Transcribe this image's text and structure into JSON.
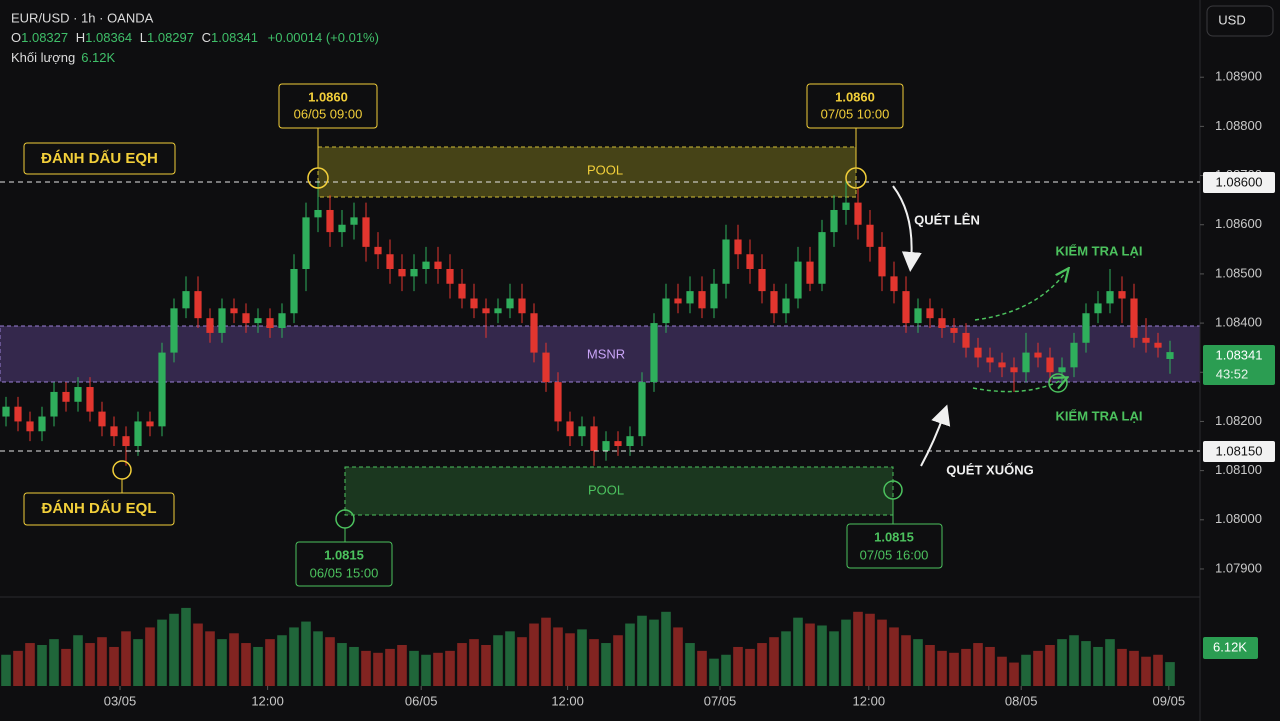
{
  "chart_data": {
    "type": "candlestick",
    "title": "EUR/USD · 1h · OANDA",
    "currency": "USD",
    "ohlc_labels": [
      "O",
      "H",
      "L",
      "C"
    ],
    "change_label": "+0.00014 (+0.01%)",
    "volume_title": "Khối lượng",
    "volume_value_label": "6.12K",
    "countdown": "43:52",
    "up_color": "#2fae5c",
    "down_color": "#e2362f",
    "open": [
      1.0821,
      1.0823,
      1.082,
      1.0818,
      1.0821,
      1.0826,
      1.0824,
      1.0827,
      1.0822,
      1.0819,
      1.0817,
      1.0815,
      1.082,
      1.0819,
      1.0834,
      1.0843,
      1.08465,
      1.0841,
      1.0838,
      1.0843,
      1.0842,
      1.084,
      1.0841,
      1.0839,
      1.0842,
      1.0851,
      1.08615,
      1.0863,
      1.08585,
      1.086,
      1.08615,
      1.08555,
      1.0854,
      1.0851,
      1.08495,
      1.0851,
      1.08525,
      1.0851,
      1.0848,
      1.0845,
      1.0843,
      1.0842,
      1.0843,
      1.0845,
      1.0842,
      1.0834,
      1.0828,
      1.082,
      1.0817,
      1.0819,
      1.0814,
      1.0816,
      1.0815,
      1.0817,
      1.0828,
      1.084,
      1.0845,
      1.0844,
      1.08465,
      1.0843,
      1.0848,
      1.0857,
      1.0854,
      1.0851,
      1.08465,
      1.0842,
      1.0845,
      1.08525,
      1.0848,
      1.08585,
      1.0863,
      1.08645,
      1.086,
      1.08555,
      1.08495,
      1.08465,
      1.084,
      1.0843,
      1.0841,
      1.0839,
      1.0838,
      1.0835,
      1.0833,
      1.0832,
      1.0831,
      1.083,
      1.0834,
      1.0833,
      1.083,
      1.0831,
      1.0836,
      1.0842,
      1.0844,
      1.08465,
      1.0845,
      1.0837,
      1.0836,
      1.08327
    ],
    "high": [
      1.0825,
      1.0825,
      1.0822,
      1.0823,
      1.0828,
      1.0828,
      1.0829,
      1.0829,
      1.0824,
      1.0821,
      1.0819,
      1.0822,
      1.0822,
      1.0836,
      1.0845,
      1.08495,
      1.08495,
      1.0843,
      1.0845,
      1.0845,
      1.0844,
      1.0843,
      1.0843,
      1.0844,
      1.0854,
      1.08645,
      1.0869,
      1.0866,
      1.0863,
      1.08645,
      1.08645,
      1.08585,
      1.0857,
      1.0854,
      1.0854,
      1.08555,
      1.08555,
      1.0854,
      1.0851,
      1.0848,
      1.0845,
      1.0845,
      1.0848,
      1.0848,
      1.0844,
      1.0836,
      1.083,
      1.0822,
      1.0821,
      1.0821,
      1.0818,
      1.0818,
      1.0819,
      1.083,
      1.0842,
      1.0848,
      1.0848,
      1.08495,
      1.08495,
      1.0851,
      1.086,
      1.086,
      1.0857,
      1.0854,
      1.0848,
      1.0848,
      1.08555,
      1.08555,
      1.0861,
      1.0866,
      1.0869,
      1.08675,
      1.0863,
      1.08585,
      1.08525,
      1.08495,
      1.0845,
      1.0845,
      1.0843,
      1.0841,
      1.084,
      1.0837,
      1.0835,
      1.0834,
      1.0833,
      1.0838,
      1.0836,
      1.0835,
      1.0833,
      1.0838,
      1.0844,
      1.08465,
      1.0851,
      1.08495,
      1.0848,
      1.0841,
      1.0838,
      1.08364
    ],
    "low": [
      1.0819,
      1.0818,
      1.0816,
      1.0816,
      1.0819,
      1.0822,
      1.0822,
      1.082,
      1.0817,
      1.0815,
      1.0811,
      1.0813,
      1.0817,
      1.0817,
      1.0832,
      1.0841,
      1.0839,
      1.0836,
      1.0836,
      1.084,
      1.0838,
      1.0838,
      1.0837,
      1.0837,
      1.084,
      1.08465,
      1.08585,
      1.08555,
      1.08555,
      1.0857,
      1.08525,
      1.0851,
      1.0848,
      1.08465,
      1.08465,
      1.0848,
      1.0848,
      1.0845,
      1.0843,
      1.0841,
      1.0837,
      1.084,
      1.0841,
      1.084,
      1.0832,
      1.0826,
      1.0818,
      1.0815,
      1.0815,
      1.0811,
      1.0812,
      1.0813,
      1.0813,
      1.0815,
      1.0826,
      1.0838,
      1.0842,
      1.0842,
      1.0841,
      1.0841,
      1.0845,
      1.0851,
      1.0848,
      1.0844,
      1.084,
      1.084,
      1.0843,
      1.08465,
      1.08465,
      1.08555,
      1.086,
      1.0857,
      1.08525,
      1.08465,
      1.0844,
      1.0838,
      1.0838,
      1.0839,
      1.0837,
      1.0836,
      1.0833,
      1.0831,
      1.083,
      1.0829,
      1.0826,
      1.0828,
      1.0831,
      1.0828,
      1.0828,
      1.0829,
      1.0834,
      1.084,
      1.0842,
      1.084,
      1.0835,
      1.0834,
      1.0833,
      1.08297
    ],
    "close": [
      1.0823,
      1.082,
      1.0818,
      1.0821,
      1.0826,
      1.0824,
      1.0827,
      1.0822,
      1.0819,
      1.0817,
      1.0815,
      1.082,
      1.0819,
      1.0834,
      1.0843,
      1.08465,
      1.0841,
      1.0838,
      1.0843,
      1.0842,
      1.084,
      1.0841,
      1.0839,
      1.0842,
      1.0851,
      1.08615,
      1.0863,
      1.08585,
      1.086,
      1.08615,
      1.08555,
      1.0854,
      1.0851,
      1.08495,
      1.0851,
      1.08525,
      1.0851,
      1.0848,
      1.0845,
      1.0843,
      1.0842,
      1.0843,
      1.0845,
      1.0842,
      1.0834,
      1.0828,
      1.082,
      1.0817,
      1.0819,
      1.0814,
      1.0816,
      1.0815,
      1.0817,
      1.0828,
      1.084,
      1.0845,
      1.0844,
      1.08465,
      1.0843,
      1.0848,
      1.0857,
      1.0854,
      1.0851,
      1.08465,
      1.0842,
      1.0845,
      1.08525,
      1.0848,
      1.08585,
      1.0863,
      1.08645,
      1.086,
      1.08555,
      1.08495,
      1.08465,
      1.084,
      1.0843,
      1.0841,
      1.0839,
      1.0838,
      1.0835,
      1.0833,
      1.0832,
      1.0831,
      1.083,
      1.0834,
      1.0833,
      1.083,
      1.0831,
      1.0836,
      1.0842,
      1.0844,
      1.08465,
      1.0845,
      1.0837,
      1.0836,
      1.0835,
      1.08341
    ],
    "volume": [
      8000,
      9000,
      11000,
      10500,
      12000,
      9500,
      13000,
      11000,
      12500,
      10000,
      14000,
      12000,
      15000,
      17000,
      18500,
      20000,
      16000,
      14000,
      12000,
      13500,
      11000,
      10000,
      12000,
      13000,
      15000,
      16500,
      14000,
      12500,
      11000,
      10000,
      9000,
      8500,
      9500,
      10500,
      9000,
      8000,
      8500,
      9000,
      11000,
      12000,
      10500,
      13000,
      14000,
      12500,
      16000,
      17500,
      15000,
      13500,
      14500,
      12000,
      11000,
      13000,
      16000,
      18000,
      17000,
      19000,
      15000,
      11000,
      9000,
      7000,
      8000,
      10000,
      9500,
      11000,
      12500,
      14000,
      17500,
      16000,
      15500,
      14000,
      17000,
      19000,
      18500,
      17000,
      15000,
      13000,
      12000,
      10500,
      9000,
      8500,
      9500,
      11000,
      10000,
      7500,
      6000,
      8000,
      9000,
      10500,
      12000,
      13000,
      11500,
      10000,
      12000,
      9500,
      9000,
      7500,
      8000,
      6120
    ],
    "xlim": [
      -0.5,
      99.5
    ],
    "xticks": [
      {
        "value": 9.5,
        "label": "03/05"
      },
      {
        "value": 21.8,
        "label": "12:00"
      },
      {
        "value": 34.6,
        "label": "06/05"
      },
      {
        "value": 46.8,
        "label": "12:00"
      },
      {
        "value": 59.5,
        "label": "07/05"
      },
      {
        "value": 71.9,
        "label": "12:00"
      },
      {
        "value": 84.6,
        "label": "08/05"
      },
      {
        "value": 96.9,
        "label": "09/05"
      }
    ],
    "ylim": [
      1.07843,
      1.09057
    ],
    "yticks": [
      {
        "value": 1.089,
        "label": "1.08900"
      },
      {
        "value": 1.088,
        "label": "1.08800"
      },
      {
        "value": 1.087,
        "label": "1.08700"
      },
      {
        "value": 1.086,
        "label": "1.08600"
      },
      {
        "value": 1.085,
        "label": "1.08500"
      },
      {
        "value": 1.084,
        "label": "1.08400"
      },
      {
        "value": 1.083,
        "label": "1.08300"
      },
      {
        "value": 1.082,
        "label": "1.08200"
      },
      {
        "value": 1.081,
        "label": "1.08100"
      },
      {
        "value": 1.08,
        "label": "1.08000"
      },
      {
        "value": 1.079,
        "label": "1.07900"
      }
    ],
    "volume_ylim": [
      0,
      21000
    ],
    "annotations": {
      "eqh_mark": "ĐÁNH DẤU EQH",
      "eql_mark": "ĐÁNH DẤU EQL",
      "high_1": [
        "1.0860",
        "06/05 09:00"
      ],
      "high_2": [
        "1.0860",
        "07/05 10:00"
      ],
      "low_1": [
        "1.0815",
        "06/05 15:00"
      ],
      "low_2": [
        "1.0815",
        "07/05 16:00"
      ],
      "pool_top": "POOL",
      "pool_bottom": "POOL",
      "msnr": "MSNR",
      "sweep_up": "QUÉT LÊN",
      "sweep_down": "QUÉT XUỐNG",
      "retest_top": "KIỂM TRA LẠI",
      "retest_bottom": "KIỂM TRA LẠI",
      "eqh_level": "1.08600",
      "eql_level": "1.08150"
    }
  }
}
